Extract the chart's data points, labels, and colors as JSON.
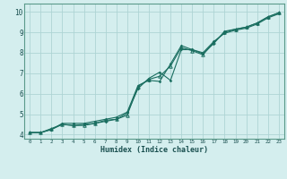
{
  "title": "",
  "xlabel": "Humidex (Indice chaleur)",
  "xlim": [
    -0.5,
    23.5
  ],
  "ylim": [
    3.8,
    10.4
  ],
  "xticks": [
    0,
    1,
    2,
    3,
    4,
    5,
    6,
    7,
    8,
    9,
    10,
    11,
    12,
    13,
    14,
    15,
    16,
    17,
    18,
    19,
    20,
    21,
    22,
    23
  ],
  "yticks": [
    4,
    5,
    6,
    7,
    8,
    9,
    10
  ],
  "bg_color": "#d4eeee",
  "grid_color": "#aed4d4",
  "line_color": "#1a6e60",
  "line1_y": [
    4.1,
    4.1,
    4.25,
    4.55,
    4.55,
    4.55,
    4.65,
    4.75,
    4.85,
    5.1,
    6.4,
    6.65,
    6.6,
    7.45,
    8.35,
    8.15,
    7.95,
    8.45,
    9.05,
    9.15,
    9.25,
    9.45,
    9.75,
    9.95
  ],
  "line2_y": [
    4.1,
    4.1,
    4.25,
    4.5,
    4.45,
    4.5,
    4.55,
    4.65,
    4.75,
    5.05,
    6.25,
    6.75,
    7.05,
    6.65,
    8.15,
    8.15,
    8.0,
    8.55,
    8.95,
    9.1,
    9.2,
    9.4,
    9.7,
    9.9
  ],
  "line3_y": [
    4.1,
    4.1,
    4.3,
    4.5,
    4.45,
    4.45,
    4.55,
    4.7,
    4.75,
    4.95,
    6.35,
    6.7,
    6.85,
    7.35,
    8.25,
    8.1,
    7.9,
    8.5,
    9.0,
    9.15,
    9.25,
    9.45,
    9.75,
    9.95
  ]
}
